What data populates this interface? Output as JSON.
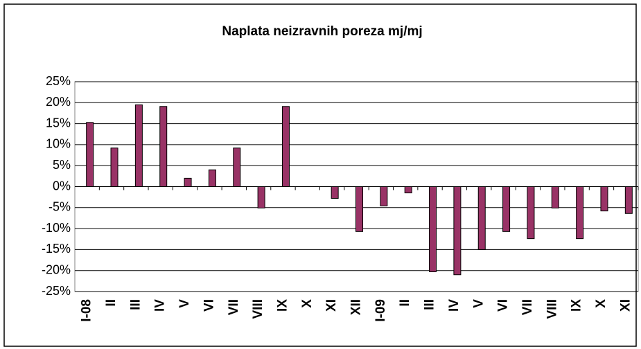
{
  "chart_data": {
    "type": "bar",
    "title": "Naplata neizravnih poreza mj/mj",
    "categories": [
      "I-08",
      "II",
      "III",
      "IV",
      "V",
      "VI",
      "VII",
      "VIII",
      "IX",
      "X",
      "XI",
      "XII",
      "I-09",
      "II",
      "III",
      "IV",
      "V",
      "VI",
      "VII",
      "VIII",
      "IX",
      "X",
      "XI"
    ],
    "values": [
      15.3,
      9.2,
      19.5,
      19.1,
      2.0,
      4.0,
      9.2,
      -5.1,
      19.1,
      0,
      -2.8,
      -10.7,
      -4.6,
      -1.5,
      -20.3,
      -21.0,
      -15.0,
      -10.7,
      -12.4,
      -5.1,
      -12.4,
      -5.8,
      -6.4
    ],
    "color": "#993366",
    "ylim": [
      -25,
      25
    ],
    "yticks": [
      {
        "value": -25,
        "label": "-25%"
      },
      {
        "value": -20,
        "label": "-20%"
      },
      {
        "value": -15,
        "label": "-15%"
      },
      {
        "value": -10,
        "label": "-10%"
      },
      {
        "value": -5,
        "label": "-5%"
      },
      {
        "value": 0,
        "label": "0%"
      },
      {
        "value": 5,
        "label": "5%"
      },
      {
        "value": 10,
        "label": "10%"
      },
      {
        "value": 15,
        "label": "15%"
      },
      {
        "value": 20,
        "label": "20%"
      },
      {
        "value": 25,
        "label": "25%"
      }
    ],
    "grid": true
  }
}
